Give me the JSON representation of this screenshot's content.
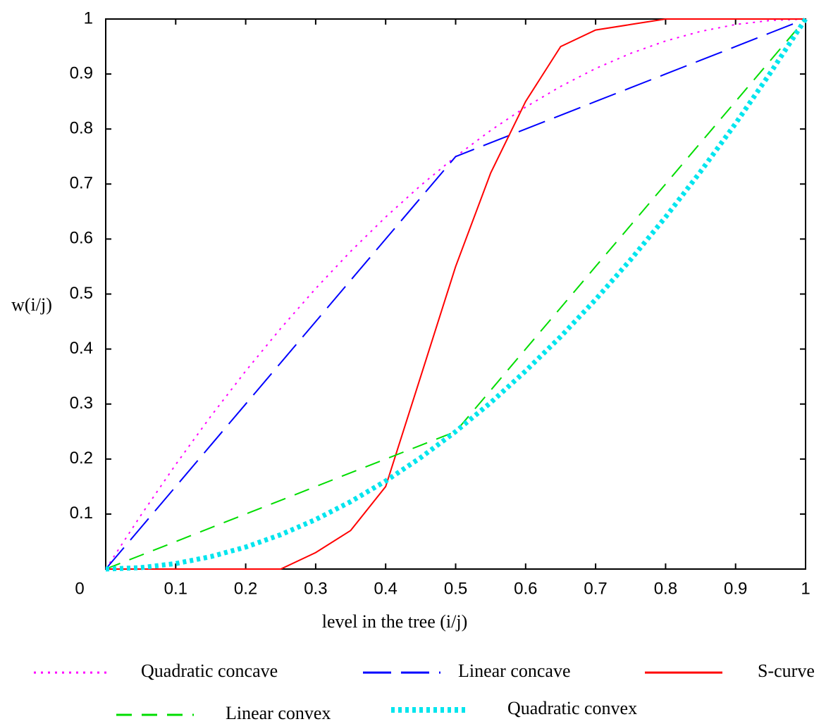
{
  "chart_data": {
    "type": "line",
    "x_label": "level in the tree (i/j)",
    "y_label": "w(i/j)",
    "x": [
      0,
      0.05,
      0.1,
      0.15,
      0.2,
      0.25,
      0.3,
      0.35,
      0.4,
      0.45,
      0.5,
      0.55,
      0.6,
      0.65,
      0.7,
      0.75,
      0.8,
      0.85,
      0.9,
      0.95,
      1
    ],
    "series": [
      {
        "name": "Quadratic concave",
        "color": "#ff00ff",
        "values": [
          0,
          0.0975,
          0.19,
          0.2775,
          0.36,
          0.4375,
          0.51,
          0.5775,
          0.64,
          0.6975,
          0.75,
          0.7975,
          0.84,
          0.8775,
          0.91,
          0.9375,
          0.96,
          0.9775,
          0.99,
          0.9975,
          1
        ]
      },
      {
        "name": "Linear concave",
        "color": "#0000ff",
        "values": [
          0,
          0.075,
          0.15,
          0.225,
          0.3,
          0.375,
          0.45,
          0.525,
          0.6,
          0.675,
          0.75,
          0.775,
          0.8,
          0.825,
          0.85,
          0.875,
          0.9,
          0.925,
          0.95,
          0.975,
          1
        ]
      },
      {
        "name": "S-curve",
        "color": "#ff0000",
        "values": [
          0,
          0,
          0,
          0,
          0,
          0,
          0.03,
          0.07,
          0.15,
          0.35,
          0.55,
          0.72,
          0.85,
          0.95,
          0.98,
          0.99,
          1,
          1,
          1,
          1,
          1
        ]
      },
      {
        "name": "Linear convex",
        "color": "#00dd00",
        "values": [
          0,
          0.025,
          0.05,
          0.075,
          0.1,
          0.125,
          0.15,
          0.175,
          0.2,
          0.225,
          0.25,
          0.325,
          0.4,
          0.475,
          0.55,
          0.625,
          0.7,
          0.775,
          0.85,
          0.925,
          1
        ]
      },
      {
        "name": "Quadratic convex",
        "color": "#00e5ee",
        "values": [
          0,
          0.0025,
          0.01,
          0.0225,
          0.04,
          0.0625,
          0.09,
          0.1225,
          0.16,
          0.2025,
          0.25,
          0.3025,
          0.36,
          0.4225,
          0.49,
          0.5625,
          0.64,
          0.7225,
          0.81,
          0.9025,
          1
        ]
      }
    ],
    "xlim": [
      0,
      1
    ],
    "ylim": [
      0,
      1
    ],
    "xticks": [
      0,
      0.1,
      0.2,
      0.3,
      0.4,
      0.5,
      0.6,
      0.7,
      0.8,
      0.9,
      1
    ],
    "yticks": [
      0.1,
      0.2,
      0.3,
      0.4,
      0.5,
      0.6,
      0.7,
      0.8,
      0.9,
      1
    ]
  }
}
